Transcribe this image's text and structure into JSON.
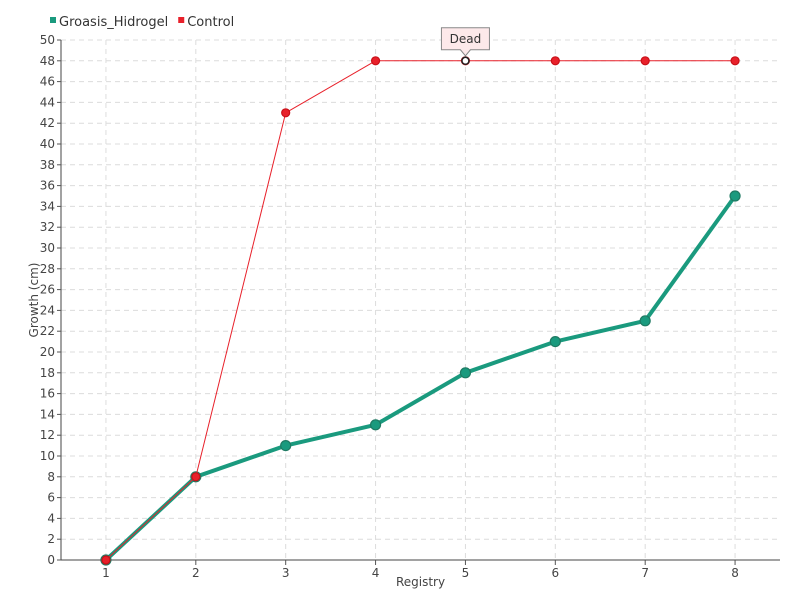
{
  "chart_data": {
    "type": "line",
    "x": [
      1,
      2,
      3,
      4,
      5,
      6,
      7,
      8
    ],
    "xlabel": "Registry",
    "ylabel": "Growth (cm)",
    "xlim": [
      0.5,
      8.5
    ],
    "ylim": [
      0,
      50
    ],
    "ytick_step": 2,
    "grid": true,
    "legend_position": "top-left",
    "series": [
      {
        "name": "Groasis_Hidrogel",
        "color": "#1a9a7e",
        "values": [
          0,
          8,
          11,
          13,
          18,
          21,
          23,
          35
        ]
      },
      {
        "name": "Control",
        "color": "#e8202a",
        "values": [
          0,
          8,
          43,
          48,
          48,
          48,
          48,
          48
        ]
      }
    ],
    "annotations": [
      {
        "text": "Dead",
        "series": "Control",
        "x": 5,
        "y": 48
      }
    ]
  }
}
